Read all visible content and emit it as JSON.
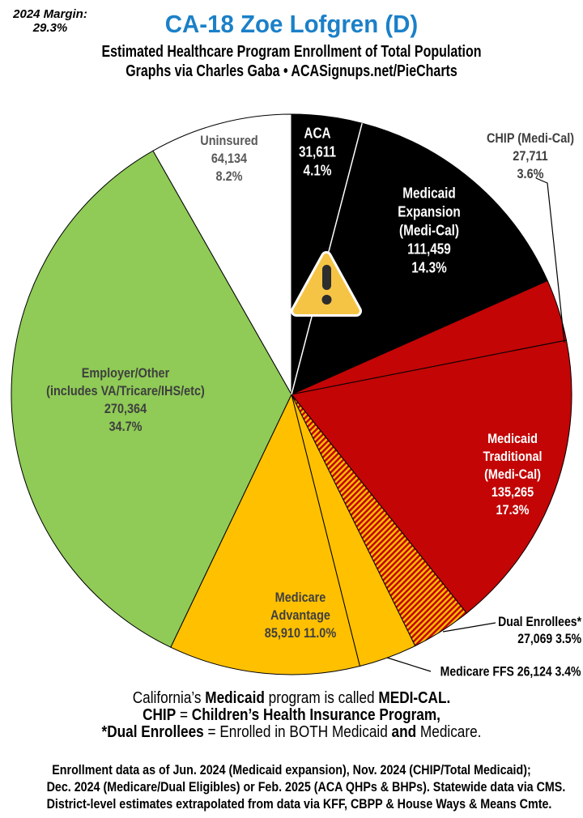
{
  "header": {
    "margin_note_line1": "2024 Margin:",
    "margin_note_line2": "29.3%",
    "title": "CA-18 Zoe Lofgren (D)",
    "title_color": "#1B80C8",
    "subtitle": "Estimated Healthcare Program Enrollment of Total Population",
    "credit": "Graphs via Charles Gaba   •   ACASignups.net/PieCharts"
  },
  "chart_data": {
    "type": "pie",
    "title": "Estimated Healthcare Program Enrollment of Total Population",
    "direction": "clockwise",
    "start_angle_deg": 0,
    "slices": [
      {
        "id": "aca",
        "label": "ACA",
        "value": 31611,
        "pct": "4.1%",
        "color": "#000000",
        "label_lines": [
          "ACA",
          "31,611",
          "4.1%"
        ]
      },
      {
        "id": "medicaid-expansion",
        "label": "Medicaid Expansion (Medi-Cal)",
        "value": 111459,
        "pct": "14.3%",
        "color": "#000000",
        "label_lines": [
          "Medicaid",
          "Expansion",
          "(Medi-Cal)",
          "111,459",
          "14.3%"
        ]
      },
      {
        "id": "chip",
        "label": "CHIP (Medi-Cal)",
        "value": 27711,
        "pct": "3.6%",
        "color": "#C30505",
        "label_lines": [
          "CHIP (Medi-Cal)",
          "27,711",
          "3.6%"
        ]
      },
      {
        "id": "medicaid-traditional",
        "label": "Medicaid Traditional (Medi-Cal)",
        "value": 135265,
        "pct": "17.3%",
        "color": "#C30505",
        "label_lines": [
          "Medicaid",
          "Traditional",
          "(Medi-Cal)",
          "135,265",
          "17.3%"
        ]
      },
      {
        "id": "dual-enrollees",
        "label": "Dual Enrollees*",
        "value": 27069,
        "pct": "3.5%",
        "color": "#FFC000",
        "hatch": true,
        "hatch_color": "#C30505",
        "label_lines": [
          "Dual Enrollees*",
          "27,069 3.5%"
        ]
      },
      {
        "id": "medicare-ffs",
        "label": "Medicare FFS",
        "value": 26124,
        "pct": "3.4%",
        "color": "#FFC000",
        "label_lines": [
          "Medicare FFS 26,124 3.4%"
        ]
      },
      {
        "id": "medicare-advantage",
        "label": "Medicare Advantage",
        "value": 85910,
        "pct": "11.0%",
        "color": "#FFC000",
        "label_lines": [
          "Medicare",
          "Advantage",
          "85,910 11.0%"
        ]
      },
      {
        "id": "employer-other",
        "label": "Employer/Other (includes VA/Tricare/IHS/etc)",
        "value": 270364,
        "pct": "34.7%",
        "color": "#8FCB56",
        "label_lines": [
          "Employer/Other",
          "(includes VA/Tricare/IHS/etc)",
          "270,364",
          "34.7%"
        ]
      },
      {
        "id": "uninsured",
        "label": "Uninsured",
        "value": 64134,
        "pct": "8.2%",
        "color": "#FFFFFF",
        "label_lines": [
          "Uninsured",
          "64,134",
          "8.2%"
        ]
      }
    ]
  },
  "notes": {
    "lines": [
      [
        {
          "t": "California’s ",
          "b": 0
        },
        {
          "t": "Medicaid",
          "b": 1
        },
        {
          "t": " program is called ",
          "b": 0
        },
        {
          "t": "MEDI-CAL.",
          "b": 1
        }
      ],
      [
        {
          "t": "CHIP",
          "b": 1
        },
        {
          "t": " = ",
          "b": 0
        },
        {
          "t": "Children’s Health Insurance Program,",
          "b": 1
        }
      ],
      [
        {
          "t": "*Dual Enrollees",
          "b": 1
        },
        {
          "t": " = Enrolled in BOTH Medicaid ",
          "b": 0
        },
        {
          "t": "and",
          "b": 1
        },
        {
          "t": " Medicare.",
          "b": 0
        }
      ]
    ]
  },
  "footer": {
    "lines": [
      "Enrollment data as of Jun. 2024 (Medicaid expansion), Nov. 2024 (CHIP/Total Medicaid);",
      "Dec. 2024 (Medicare/Dual Eligibles) or Feb. 2025 (ACA QHPs & BHPs). Statewide data via CMS.",
      "District-level estimates extrapolated from data via KFF, CBPP & House Ways & Means Cmte."
    ]
  }
}
